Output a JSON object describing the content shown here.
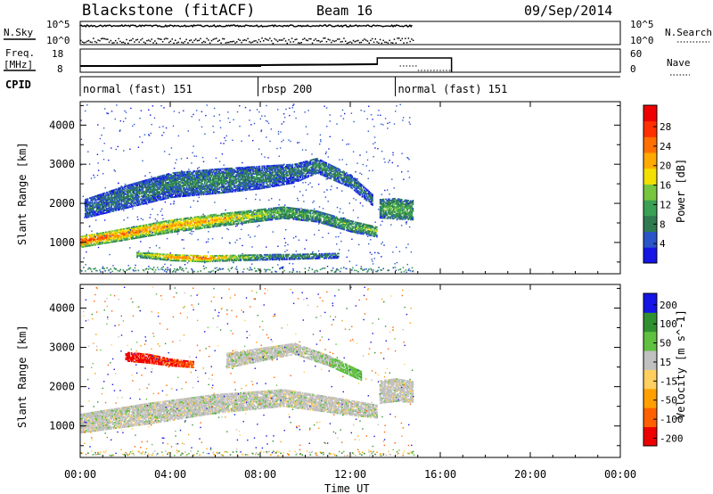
{
  "header": {
    "station": "Blackstone (fitACF)",
    "beam": "Beam 16",
    "date": "09/Sep/2014"
  },
  "left_labels": {
    "nsky": "N.Sky",
    "freq_line1": "Freq.",
    "freq_line2": "[MHz]",
    "cpid": "CPID"
  },
  "right_labels": {
    "nsearch": "N.Search",
    "nave": "Nave"
  },
  "noise_ticks": {
    "left_top": "10^5",
    "left_bottom": "10^0",
    "right_top": "10^5",
    "right_bottom": "10^0"
  },
  "freq_ticks": {
    "left_top": "18",
    "left_bottom": "8",
    "right_top": "60",
    "right_bottom": "0"
  },
  "cpid_segments": [
    {
      "label": "normal (fast) 151",
      "start_h": 0.0,
      "end_h": 7.9
    },
    {
      "label": "rbsp 200",
      "start_h": 7.9,
      "end_h": 14.0
    },
    {
      "label": "normal (fast) 151",
      "start_h": 14.0,
      "end_h": 24.0
    }
  ],
  "colors": {
    "power_scale": [
      "#1515e6",
      "#2a55c8",
      "#2f7a50",
      "#3aa055",
      "#77c640",
      "#f3e000",
      "#ffaa00",
      "#ff7000",
      "#ff3000",
      "#ee0000"
    ],
    "velocity_scale": [
      "#ee0000",
      "#ff6000",
      "#ffa000",
      "#ffd060",
      "#c0c0c0",
      "#60c040",
      "#309030",
      "#1515e6"
    ]
  },
  "chart_data": [
    {
      "type": "heatmap",
      "title": "",
      "xlabel": "Time UT",
      "ylabel": "Slant Range [km]",
      "xlim_hours": [
        0,
        24
      ],
      "ylim_km": [
        200,
        4600
      ],
      "x_ticks": [
        "00:00",
        "04:00",
        "08:00",
        "12:00",
        "16:00",
        "20:00",
        "00:00"
      ],
      "y_ticks": [
        "1000",
        "2000",
        "3000",
        "4000"
      ],
      "colorbar": {
        "label": "Power [dB]",
        "ticks": [
          "4",
          "8",
          "12",
          "16",
          "20",
          "24",
          "28"
        ],
        "range": [
          0,
          30
        ]
      },
      "bands": [
        {
          "desc": "main echo",
          "t": [
            0,
            2,
            4,
            6,
            7.5,
            9,
            10.5,
            12,
            13.2
          ],
          "r_km": [
            1050,
            1250,
            1450,
            1600,
            1700,
            1800,
            1700,
            1450,
            1300
          ],
          "width_km": [
            300,
            320,
            340,
            340,
            330,
            320,
            300,
            300,
            280
          ],
          "power_db": [
            26,
            22,
            21,
            20,
            16,
            12,
            11,
            12,
            14
          ]
        },
        {
          "desc": "upper diffuse",
          "t": [
            0.2,
            2,
            4,
            6,
            8,
            9.5,
            10.5,
            12,
            13
          ],
          "r_km": [
            1900,
            2200,
            2500,
            2600,
            2700,
            2800,
            3000,
            2600,
            2100
          ],
          "width_km": [
            500,
            600,
            650,
            650,
            600,
            500,
            400,
            350,
            300
          ],
          "power_db": [
            6,
            8,
            8,
            9,
            8,
            7,
            9,
            8,
            6
          ]
        },
        {
          "desc": "low range",
          "t": [
            2.5,
            4,
            5.5,
            7,
            8.5,
            10,
            11.5
          ],
          "r_km": [
            720,
            650,
            620,
            640,
            660,
            680,
            700
          ],
          "width_km": [
            150,
            180,
            180,
            160,
            160,
            150,
            150
          ],
          "power_db": [
            13,
            22,
            24,
            16,
            9,
            8,
            7
          ]
        },
        {
          "desc": "late segment",
          "t": [
            13.3,
            14,
            14.8
          ],
          "r_km": [
            1900,
            1900,
            1850
          ],
          "width_km": [
            500,
            550,
            500
          ],
          "power_db": [
            10,
            13,
            12
          ]
        }
      ]
    },
    {
      "type": "heatmap",
      "title": "",
      "xlabel": "Time UT",
      "ylabel": "Slant Range [km]",
      "xlim_hours": [
        0,
        24
      ],
      "ylim_km": [
        200,
        4600
      ],
      "x_ticks": [
        "00:00",
        "04:00",
        "08:00",
        "12:00",
        "16:00",
        "20:00",
        "00:00"
      ],
      "y_ticks": [
        "1000",
        "2000",
        "3000",
        "4000"
      ],
      "colorbar": {
        "label": "Velocity [m s^-1]",
        "ticks": [
          "200",
          "100",
          "50",
          "15",
          "-15",
          "-50",
          "-100",
          "-200"
        ],
        "range": [
          -250,
          250
        ]
      },
      "bands": [
        {
          "desc": "ground scatter",
          "t": [
            0,
            3,
            6,
            9,
            12,
            13.2
          ],
          "r_km": [
            1100,
            1350,
            1600,
            1750,
            1500,
            1400
          ],
          "width_km": [
            500,
            550,
            500,
            450,
            400,
            350
          ],
          "vel": [
            0,
            0,
            0,
            0,
            0,
            0
          ]
        },
        {
          "desc": "strong negative",
          "t": [
            2,
            3,
            4,
            5
          ],
          "r_km": [
            2800,
            2750,
            2650,
            2600
          ],
          "width_km": [
            250,
            250,
            200,
            180
          ],
          "vel": [
            -220,
            -210,
            -200,
            -190
          ]
        },
        {
          "desc": "upper gray",
          "t": [
            6.5,
            8,
            9.5,
            11,
            12.5
          ],
          "r_km": [
            2700,
            2850,
            3000,
            2700,
            2300
          ],
          "width_km": [
            400,
            350,
            300,
            280,
            250
          ],
          "vel": [
            0,
            0,
            0,
            10,
            40
          ]
        },
        {
          "desc": "late gray",
          "t": [
            13.3,
            14,
            14.8
          ],
          "r_km": [
            1900,
            1950,
            1900
          ],
          "width_km": [
            600,
            600,
            550
          ],
          "vel": [
            0,
            0,
            0
          ]
        }
      ]
    }
  ]
}
